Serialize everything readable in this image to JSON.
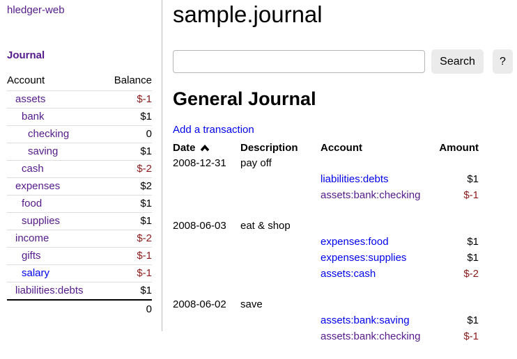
{
  "colors": {
    "link_blue": "#0000EE",
    "link_purple": "#551A8B",
    "negative_red": "#8B1A1A",
    "button_bg": "#ebebeb"
  },
  "sidebar": {
    "app_title": "hledger-web",
    "journal_label": "Journal",
    "columns": [
      "Account",
      "Balance"
    ],
    "accounts": [
      {
        "name": "assets",
        "indent": 1,
        "balance": "$-1",
        "negative": true,
        "link_color": "purple"
      },
      {
        "name": "bank",
        "indent": 2,
        "balance": "$1",
        "negative": false,
        "link_color": "purple"
      },
      {
        "name": "checking",
        "indent": 3,
        "balance": "0",
        "negative": false,
        "link_color": "purple"
      },
      {
        "name": "saving",
        "indent": 3,
        "balance": "$1",
        "negative": false,
        "link_color": "purple"
      },
      {
        "name": "cash",
        "indent": 2,
        "balance": "$-2",
        "negative": true,
        "link_color": "purple"
      },
      {
        "name": "expenses",
        "indent": 1,
        "balance": "$2",
        "negative": false,
        "link_color": "purple"
      },
      {
        "name": "food",
        "indent": 2,
        "balance": "$1",
        "negative": false,
        "link_color": "purple"
      },
      {
        "name": "supplies",
        "indent": 2,
        "balance": "$1",
        "negative": false,
        "link_color": "purple"
      },
      {
        "name": "income",
        "indent": 1,
        "balance": "$-2",
        "negative": true,
        "link_color": "purple"
      },
      {
        "name": "gifts",
        "indent": 2,
        "balance": "$-1",
        "negative": true,
        "link_color": "purple"
      },
      {
        "name": "salary",
        "indent": 2,
        "balance": "$-1",
        "negative": true,
        "link_color": "blue"
      },
      {
        "name": "liabilities:debts",
        "indent": 1,
        "balance": "$1",
        "negative": false,
        "link_color": "purple"
      }
    ],
    "total": "0"
  },
  "main": {
    "title": "sample.journal",
    "search": {
      "value": "",
      "placeholder": "",
      "button_label": "Search",
      "help_label": "?"
    },
    "section_title": "General Journal",
    "add_link": "Add a transaction",
    "table": {
      "columns": [
        "Date",
        "Description",
        "Account",
        "Amount"
      ],
      "sort": {
        "column": "Date",
        "direction": "ascending"
      }
    },
    "transactions": [
      {
        "date": "2008-12-31",
        "description": "pay off",
        "postings": [
          {
            "account": "liabilities:debts",
            "amount": "$1",
            "negative": false,
            "link_color": "blue"
          },
          {
            "account": "assets:bank:checking",
            "amount": "$-1",
            "negative": true,
            "link_color": "purple"
          }
        ]
      },
      {
        "date": "2008-06-03",
        "description": "eat & shop",
        "postings": [
          {
            "account": "expenses:food",
            "amount": "$1",
            "negative": false,
            "link_color": "blue"
          },
          {
            "account": "expenses:supplies",
            "amount": "$1",
            "negative": false,
            "link_color": "blue"
          },
          {
            "account": "assets:cash",
            "amount": "$-2",
            "negative": true,
            "link_color": "blue"
          }
        ]
      },
      {
        "date": "2008-06-02",
        "description": "save",
        "postings": [
          {
            "account": "assets:bank:saving",
            "amount": "$1",
            "negative": false,
            "link_color": "blue"
          },
          {
            "account": "assets:bank:checking",
            "amount": "$-1",
            "negative": true,
            "link_color": "purple"
          }
        ]
      }
    ]
  }
}
